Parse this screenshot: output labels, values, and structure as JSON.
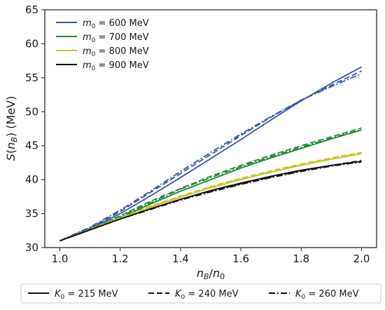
{
  "chart_data": {
    "type": "line",
    "xlabel": "n_B/n_0",
    "ylabel": "S(n_B) (MeV)",
    "xlim": [
      0.95,
      2.05
    ],
    "ylim": [
      30,
      65
    ],
    "xticks": [
      1.0,
      1.2,
      1.4,
      1.6,
      1.8,
      2.0
    ],
    "yticks": [
      30,
      35,
      40,
      45,
      50,
      55,
      60,
      65
    ],
    "xtick_labels": [
      "1.0",
      "1.2",
      "1.4",
      "1.6",
      "1.8",
      "2.0"
    ],
    "ytick_labels": [
      "30",
      "35",
      "40",
      "45",
      "50",
      "55",
      "60",
      "65"
    ],
    "grid": false,
    "x": [
      1.0,
      1.1,
      1.2,
      1.3,
      1.4,
      1.5,
      1.6,
      1.7,
      1.8,
      1.9,
      2.0
    ],
    "color_legend": {
      "placement": "top-left",
      "entries": [
        {
          "label": "m_0 = 600 MeV",
          "color": "#3a52a6"
        },
        {
          "label": "m_0 = 700 MeV",
          "color": "#1e8a3a"
        },
        {
          "label": "m_0 = 800 MeV",
          "color": "#c6c62a"
        },
        {
          "label": "m_0 = 900 MeV",
          "color": "#111111"
        }
      ]
    },
    "style_legend": {
      "placement": "bottom",
      "entries": [
        {
          "label": "K_0 = 215 MeV",
          "dash": "solid"
        },
        {
          "label": "K_0 = 240 MeV",
          "dash": "dashed"
        },
        {
          "label": "K_0 = 260 MeV",
          "dash": "dashdot"
        }
      ]
    },
    "series": [
      {
        "m0": "600",
        "K0": "215",
        "color": "#3a52a6",
        "dash": "solid",
        "values": [
          31.0,
          32.8,
          35.0,
          37.6,
          40.3,
          43.1,
          45.9,
          48.8,
          51.6,
          54.2,
          56.6
        ]
      },
      {
        "m0": "600",
        "K0": "240",
        "color": "#3a52a6",
        "dash": "dashed",
        "values": [
          31.0,
          32.9,
          35.3,
          38.1,
          40.9,
          43.7,
          46.5,
          49.2,
          51.7,
          53.9,
          56.0
        ]
      },
      {
        "m0": "600",
        "K0": "260",
        "color": "#3a52a6",
        "dash": "dashdot",
        "values": [
          31.0,
          33.0,
          35.5,
          38.3,
          41.2,
          44.0,
          46.7,
          49.3,
          51.7,
          53.7,
          55.6
        ]
      },
      {
        "m0": "700",
        "K0": "215",
        "color": "#1e8a3a",
        "dash": "solid",
        "values": [
          31.0,
          32.6,
          34.4,
          36.4,
          38.3,
          40.0,
          41.7,
          43.2,
          44.6,
          46.0,
          47.3
        ]
      },
      {
        "m0": "700",
        "K0": "240",
        "color": "#1e8a3a",
        "dash": "dashed",
        "values": [
          31.0,
          32.7,
          34.7,
          36.8,
          38.7,
          40.5,
          42.1,
          43.6,
          45.0,
          46.3,
          47.6
        ]
      },
      {
        "m0": "700",
        "K0": "260",
        "color": "#1e8a3a",
        "dash": "dashdot",
        "values": [
          31.0,
          32.7,
          34.6,
          36.6,
          38.6,
          40.3,
          41.9,
          43.4,
          44.8,
          46.1,
          47.4
        ]
      },
      {
        "m0": "800",
        "K0": "215",
        "color": "#c6c62a",
        "dash": "solid",
        "values": [
          31.0,
          32.6,
          34.3,
          35.9,
          37.4,
          38.8,
          40.0,
          41.1,
          42.1,
          43.0,
          43.8
        ]
      },
      {
        "m0": "800",
        "K0": "240",
        "color": "#c6c62a",
        "dash": "dashed",
        "values": [
          31.0,
          32.7,
          34.4,
          36.1,
          37.6,
          39.0,
          40.2,
          41.3,
          42.3,
          43.2,
          44.0
        ]
      },
      {
        "m0": "800",
        "K0": "260",
        "color": "#c6c62a",
        "dash": "dashdot",
        "values": [
          31.0,
          32.6,
          34.3,
          36.0,
          37.5,
          38.9,
          40.1,
          41.2,
          42.2,
          43.1,
          43.9
        ]
      },
      {
        "m0": "900",
        "K0": "215",
        "color": "#111111",
        "dash": "solid",
        "values": [
          31.0,
          32.6,
          34.2,
          35.7,
          37.1,
          38.4,
          39.5,
          40.5,
          41.4,
          42.1,
          42.7
        ]
      },
      {
        "m0": "900",
        "K0": "240",
        "color": "#111111",
        "dash": "dashed",
        "values": [
          31.0,
          32.6,
          34.2,
          35.7,
          37.1,
          38.3,
          39.4,
          40.4,
          41.3,
          42.1,
          42.8
        ]
      },
      {
        "m0": "900",
        "K0": "260",
        "color": "#111111",
        "dash": "dashdot",
        "values": [
          31.0,
          32.6,
          34.2,
          35.6,
          37.0,
          38.2,
          39.3,
          40.3,
          41.2,
          42.0,
          42.6
        ]
      }
    ]
  }
}
